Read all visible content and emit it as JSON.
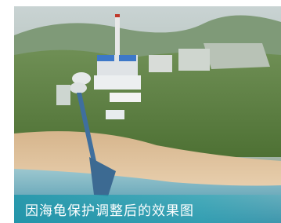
{
  "caption": "因海龟保护调整后的效果图"
}
